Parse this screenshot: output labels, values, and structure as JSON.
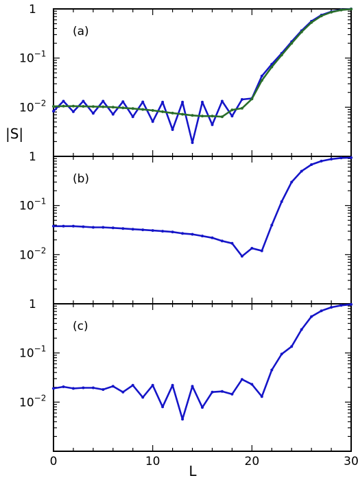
{
  "colors": {
    "blue": "#1515c8",
    "green": "#2a6e2a",
    "frame": "#000000"
  },
  "chart_data": {
    "type": "line",
    "xlabel": "L",
    "ylabel": "|S|",
    "xlim": [
      0,
      30
    ],
    "x_ticks": [
      "0",
      "10",
      "20",
      "30"
    ],
    "panels": [
      {
        "label": "(a)",
        "yscale": "log",
        "ylim": [
          0.001,
          1
        ],
        "y_tick_values": [
          1,
          0.1,
          0.01
        ],
        "y_tick_labels": [
          {
            "base": "1",
            "exp": ""
          },
          {
            "base": "10",
            "exp": "−1"
          },
          {
            "base": "10",
            "exp": "−2"
          }
        ],
        "series": [
          {
            "color": "blue",
            "x": [
              0,
              1,
              2,
              3,
              4,
              5,
              6,
              7,
              8,
              9,
              10,
              11,
              12,
              13,
              14,
              15,
              16,
              17,
              18,
              19,
              20,
              21,
              22,
              23,
              24,
              25,
              26,
              27,
              28,
              29,
              30
            ],
            "y": [
              0.0083,
              0.0133,
              0.0081,
              0.0133,
              0.0075,
              0.0133,
              0.0072,
              0.013,
              0.0064,
              0.0128,
              0.0051,
              0.0127,
              0.0035,
              0.0127,
              0.0019,
              0.0127,
              0.0044,
              0.0133,
              0.0066,
              0.0144,
              0.0151,
              0.043,
              0.075,
              0.125,
              0.215,
              0.36,
              0.56,
              0.75,
              0.88,
              0.96,
              1.0
            ]
          },
          {
            "color": "green",
            "x": [
              0,
              1,
              2,
              3,
              4,
              5,
              6,
              7,
              8,
              9,
              10,
              11,
              12,
              13,
              14,
              15,
              16,
              17,
              18,
              19,
              20,
              21,
              22,
              23,
              24,
              25,
              26,
              27,
              28,
              29,
              30
            ],
            "y": [
              0.0104,
              0.0105,
              0.0105,
              0.0104,
              0.0103,
              0.0102,
              0.01,
              0.0097,
              0.0094,
              0.009,
              0.0086,
              0.0081,
              0.0076,
              0.0072,
              0.0068,
              0.0066,
              0.0066,
              0.0064,
              0.0088,
              0.0095,
              0.0147,
              0.035,
              0.066,
              0.115,
              0.2,
              0.34,
              0.53,
              0.72,
              0.86,
              0.95,
              0.99
            ]
          }
        ]
      },
      {
        "label": "(b)",
        "yscale": "log",
        "ylim": [
          0.001,
          1
        ],
        "y_tick_values": [
          1,
          0.1,
          0.01
        ],
        "y_tick_labels": [
          {
            "base": "1",
            "exp": ""
          },
          {
            "base": "10",
            "exp": "−1"
          },
          {
            "base": "10",
            "exp": "−2"
          }
        ],
        "series": [
          {
            "color": "blue",
            "x": [
              0,
              1,
              2,
              3,
              4,
              5,
              6,
              7,
              8,
              9,
              10,
              11,
              12,
              13,
              14,
              15,
              16,
              17,
              18,
              19,
              20,
              21,
              22,
              23,
              24,
              25,
              26,
              27,
              28,
              29,
              30
            ],
            "y": [
              0.038,
              0.038,
              0.038,
              0.037,
              0.036,
              0.036,
              0.035,
              0.034,
              0.033,
              0.032,
              0.031,
              0.03,
              0.029,
              0.027,
              0.026,
              0.024,
              0.022,
              0.019,
              0.017,
              0.0093,
              0.0135,
              0.012,
              0.04,
              0.12,
              0.3,
              0.5,
              0.68,
              0.8,
              0.88,
              0.93,
              0.94
            ]
          }
        ]
      },
      {
        "label": "(c)",
        "yscale": "log",
        "ylim": [
          0.001,
          1
        ],
        "y_tick_values": [
          1,
          0.1,
          0.01
        ],
        "y_tick_labels": [
          {
            "base": "1",
            "exp": ""
          },
          {
            "base": "10",
            "exp": "−1"
          },
          {
            "base": "10",
            "exp": "−2"
          }
        ],
        "series": [
          {
            "color": "blue",
            "x": [
              0,
              1,
              2,
              3,
              4,
              5,
              6,
              7,
              8,
              9,
              10,
              11,
              12,
              13,
              14,
              15,
              16,
              17,
              18,
              19,
              20,
              21,
              22,
              23,
              24,
              25,
              26,
              27,
              28,
              29,
              30
            ],
            "y": [
              0.019,
              0.0205,
              0.019,
              0.0195,
              0.0195,
              0.018,
              0.021,
              0.016,
              0.022,
              0.0125,
              0.022,
              0.008,
              0.022,
              0.0045,
              0.021,
              0.0078,
              0.016,
              0.0165,
              0.0145,
              0.029,
              0.023,
              0.013,
              0.045,
              0.095,
              0.135,
              0.3,
              0.55,
              0.72,
              0.85,
              0.93,
              0.97
            ]
          }
        ]
      }
    ]
  }
}
